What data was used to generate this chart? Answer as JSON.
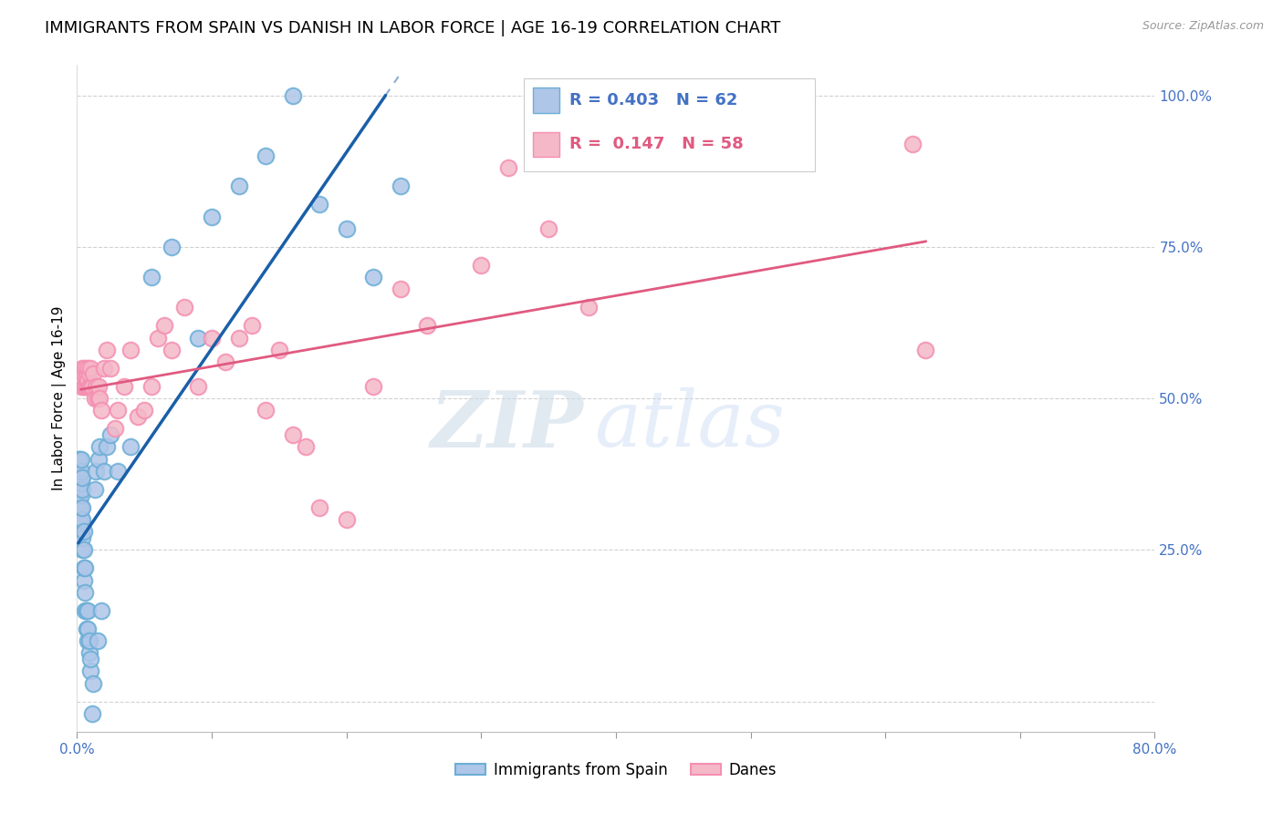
{
  "title": "IMMIGRANTS FROM SPAIN VS DANISH IN LABOR FORCE | AGE 16-19 CORRELATION CHART",
  "source": "Source: ZipAtlas.com",
  "ylabel": "In Labor Force | Age 16-19",
  "xlim": [
    0.0,
    0.8
  ],
  "ylim": [
    -0.05,
    1.05
  ],
  "xticks": [
    0.0,
    0.1,
    0.2,
    0.3,
    0.4,
    0.5,
    0.6,
    0.7,
    0.8
  ],
  "xticklabels": [
    "0.0%",
    "",
    "",
    "",
    "",
    "",
    "",
    "",
    "80.0%"
  ],
  "yticks": [
    0.0,
    0.25,
    0.5,
    0.75,
    1.0
  ],
  "yticklabels": [
    "",
    "25.0%",
    "50.0%",
    "75.0%",
    "100.0%"
  ],
  "blue_fill": "#aec6e8",
  "blue_edge": "#6baed6",
  "pink_fill": "#f4b8c8",
  "pink_edge": "#f48fb1",
  "blue_line_color": "#1a5fa8",
  "pink_line_color": "#e05a80",
  "legend_R_blue": "R = 0.403   N = 62",
  "legend_R_pink": "R =  0.147   N = 58",
  "legend_label_blue": "Immigrants from Spain",
  "legend_label_pink": "Danes",
  "watermark_zip": "ZIP",
  "watermark_atlas": "atlas",
  "grid_color": "#cccccc",
  "tick_color": "#4472c4",
  "title_fontsize": 13,
  "axis_label_fontsize": 11,
  "tick_fontsize": 11,
  "blue_scatter_x": [
    0.001,
    0.001,
    0.001,
    0.001,
    0.002,
    0.002,
    0.002,
    0.002,
    0.002,
    0.003,
    0.003,
    0.003,
    0.003,
    0.003,
    0.003,
    0.003,
    0.004,
    0.004,
    0.004,
    0.004,
    0.004,
    0.004,
    0.005,
    0.005,
    0.005,
    0.005,
    0.006,
    0.006,
    0.006,
    0.007,
    0.007,
    0.008,
    0.008,
    0.008,
    0.009,
    0.009,
    0.01,
    0.01,
    0.011,
    0.012,
    0.013,
    0.014,
    0.015,
    0.016,
    0.017,
    0.018,
    0.02,
    0.022,
    0.025,
    0.03,
    0.04,
    0.055,
    0.07,
    0.09,
    0.1,
    0.12,
    0.14,
    0.16,
    0.18,
    0.2,
    0.22,
    0.24
  ],
  "blue_scatter_y": [
    0.32,
    0.36,
    0.38,
    0.4,
    0.3,
    0.33,
    0.35,
    0.37,
    0.4,
    0.28,
    0.3,
    0.32,
    0.34,
    0.36,
    0.38,
    0.4,
    0.25,
    0.27,
    0.3,
    0.32,
    0.35,
    0.37,
    0.2,
    0.22,
    0.25,
    0.28,
    0.15,
    0.18,
    0.22,
    0.12,
    0.15,
    0.1,
    0.12,
    0.15,
    0.08,
    0.1,
    0.05,
    0.07,
    -0.02,
    0.03,
    0.35,
    0.38,
    0.1,
    0.4,
    0.42,
    0.15,
    0.38,
    0.42,
    0.44,
    0.38,
    0.42,
    0.7,
    0.75,
    0.6,
    0.8,
    0.85,
    0.9,
    1.0,
    0.82,
    0.78,
    0.7,
    0.85
  ],
  "pink_scatter_x": [
    0.003,
    0.004,
    0.004,
    0.005,
    0.005,
    0.006,
    0.006,
    0.007,
    0.007,
    0.008,
    0.008,
    0.008,
    0.009,
    0.009,
    0.01,
    0.01,
    0.011,
    0.012,
    0.013,
    0.014,
    0.015,
    0.016,
    0.017,
    0.018,
    0.02,
    0.022,
    0.025,
    0.028,
    0.03,
    0.035,
    0.04,
    0.045,
    0.05,
    0.055,
    0.06,
    0.065,
    0.07,
    0.08,
    0.09,
    0.1,
    0.11,
    0.12,
    0.13,
    0.14,
    0.15,
    0.16,
    0.17,
    0.18,
    0.2,
    0.22,
    0.24,
    0.26,
    0.3,
    0.32,
    0.35,
    0.38,
    0.62,
    0.63
  ],
  "pink_scatter_y": [
    0.52,
    0.53,
    0.55,
    0.52,
    0.54,
    0.52,
    0.55,
    0.52,
    0.54,
    0.52,
    0.53,
    0.55,
    0.52,
    0.54,
    0.52,
    0.55,
    0.52,
    0.54,
    0.5,
    0.52,
    0.5,
    0.52,
    0.5,
    0.48,
    0.55,
    0.58,
    0.55,
    0.45,
    0.48,
    0.52,
    0.58,
    0.47,
    0.48,
    0.52,
    0.6,
    0.62,
    0.58,
    0.65,
    0.52,
    0.6,
    0.56,
    0.6,
    0.62,
    0.48,
    0.58,
    0.44,
    0.42,
    0.32,
    0.3,
    0.52,
    0.68,
    0.62,
    0.72,
    0.88,
    0.78,
    0.65,
    0.92,
    0.58
  ]
}
